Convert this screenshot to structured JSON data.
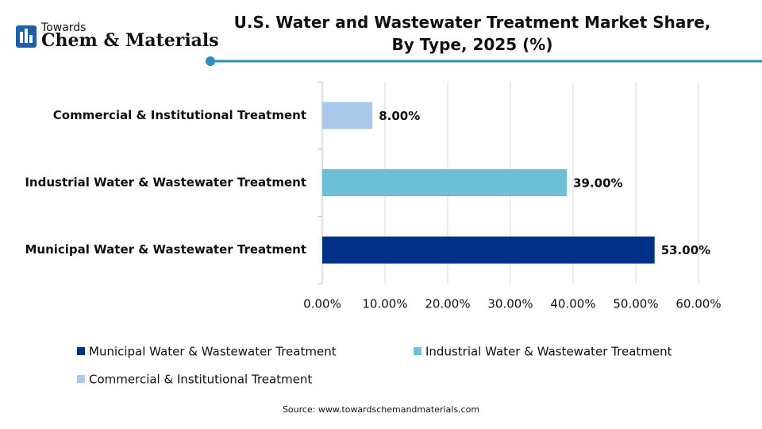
{
  "logo": {
    "top": "Towards",
    "name": "Chem & Materials"
  },
  "chart_data": {
    "type": "hbar",
    "title": "U.S. Water and Wastewater Treatment Market Share, By Type, 2025 (%)",
    "categories": [
      "Commercial & Institutional Treatment",
      "Industrial Water & Wastewater Treatment",
      "Municipal Water & Wastewater Treatment"
    ],
    "values": [
      8,
      39,
      53
    ],
    "value_labels": [
      "8.00%",
      "39.00%",
      "53.00%"
    ],
    "colors": [
      "#a9c8ea",
      "#6bbfd6",
      "#003087"
    ],
    "xlim": [
      0,
      60
    ],
    "xticks": [
      {
        "value": 0,
        "label": "0.00%"
      },
      {
        "value": 10,
        "label": "10.00%"
      },
      {
        "value": 20,
        "label": "20.00%"
      },
      {
        "value": 30,
        "label": "30.00%"
      },
      {
        "value": 40,
        "label": "40.00%"
      },
      {
        "value": 50,
        "label": "50.00%"
      },
      {
        "value": 60,
        "label": "60.00%"
      }
    ],
    "grid": true,
    "source": "Source: www.towardschemandmaterials.com"
  }
}
